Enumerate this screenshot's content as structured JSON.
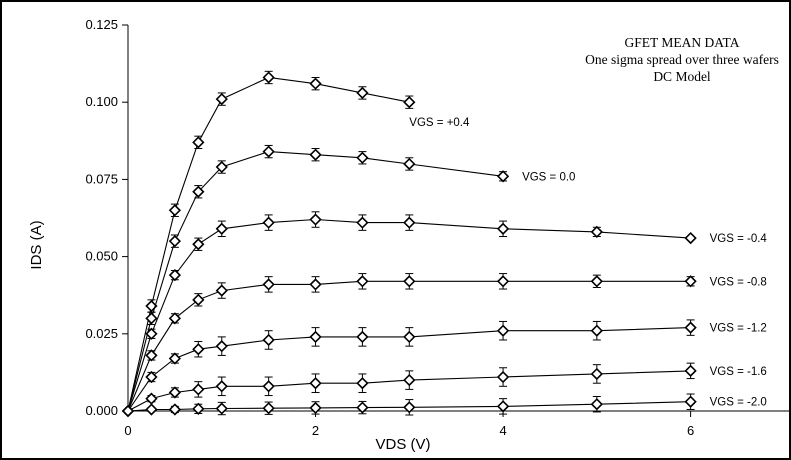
{
  "chart_data": {
    "type": "line",
    "title_lines": [
      "GFET MEAN DATA",
      "One sigma spread over three wafers",
      "DC Model"
    ],
    "xlabel": "VDS (V)",
    "ylabel": "IDS (A)",
    "xlim": [
      0,
      7.3
    ],
    "ylim": [
      0,
      0.125
    ],
    "x_ticks": [
      0,
      2,
      4,
      6
    ],
    "x_tick_labels": [
      "0",
      "2",
      "4",
      "6"
    ],
    "y_ticks": [
      0,
      0.025,
      0.05,
      0.075,
      0.1,
      0.125
    ],
    "y_tick_labels": [
      "0.000",
      "0.025",
      "0.050",
      "0.075",
      "0.100",
      "0.125"
    ],
    "marker": "diamond",
    "error_bars": true,
    "series": [
      {
        "name": "VGS = +0.4",
        "x": [
          0,
          0.25,
          0.5,
          0.75,
          1.0,
          1.5,
          2.0,
          2.5,
          3.0
        ],
        "y": [
          0,
          0.034,
          0.065,
          0.087,
          0.101,
          0.108,
          0.106,
          0.103,
          0.1
        ],
        "err": [
          0,
          0.002,
          0.002,
          0.002,
          0.002,
          0.002,
          0.002,
          0.002,
          0.002
        ]
      },
      {
        "name": "VGS =  0.0",
        "x": [
          0,
          0.25,
          0.5,
          0.75,
          1.0,
          1.5,
          2.0,
          2.5,
          3.0,
          4.0
        ],
        "y": [
          0,
          0.03,
          0.055,
          0.071,
          0.079,
          0.084,
          0.083,
          0.082,
          0.08,
          0.076
        ],
        "err": [
          0,
          0.002,
          0.002,
          0.002,
          0.002,
          0.002,
          0.002,
          0.002,
          0.002,
          0.0015
        ]
      },
      {
        "name": "VGS = -0.4",
        "x": [
          0,
          0.25,
          0.5,
          0.75,
          1.0,
          1.5,
          2.0,
          2.5,
          3.0,
          4.0,
          5.0,
          6.0
        ],
        "y": [
          0,
          0.025,
          0.044,
          0.054,
          0.059,
          0.061,
          0.062,
          0.061,
          0.061,
          0.059,
          0.058,
          0.056
        ],
        "err": [
          0,
          0.0015,
          0.0015,
          0.002,
          0.0025,
          0.0025,
          0.0025,
          0.0025,
          0.0025,
          0.0025,
          0.0015,
          0.0005
        ]
      },
      {
        "name": "VGS = -0.8",
        "x": [
          0,
          0.25,
          0.5,
          0.75,
          1.0,
          1.5,
          2.0,
          2.5,
          3.0,
          4.0,
          5.0,
          6.0
        ],
        "y": [
          0,
          0.018,
          0.03,
          0.036,
          0.039,
          0.041,
          0.041,
          0.042,
          0.042,
          0.042,
          0.042,
          0.042
        ],
        "err": [
          0,
          0.0015,
          0.0015,
          0.002,
          0.0025,
          0.0025,
          0.0025,
          0.0025,
          0.0025,
          0.0025,
          0.002,
          0.0015
        ]
      },
      {
        "name": "VGS = -1.2",
        "x": [
          0,
          0.25,
          0.5,
          0.75,
          1.0,
          1.5,
          2.0,
          2.5,
          3.0,
          4.0,
          5.0,
          6.0
        ],
        "y": [
          0,
          0.011,
          0.017,
          0.02,
          0.021,
          0.023,
          0.024,
          0.024,
          0.024,
          0.026,
          0.026,
          0.027
        ],
        "err": [
          0,
          0.0015,
          0.0015,
          0.0025,
          0.003,
          0.003,
          0.003,
          0.003,
          0.003,
          0.003,
          0.003,
          0.0025
        ]
      },
      {
        "name": "VGS = -1.6",
        "x": [
          0,
          0.25,
          0.5,
          0.75,
          1.0,
          1.5,
          2.0,
          2.5,
          3.0,
          4.0,
          5.0,
          6.0
        ],
        "y": [
          0,
          0.004,
          0.006,
          0.007,
          0.008,
          0.008,
          0.009,
          0.009,
          0.01,
          0.011,
          0.012,
          0.013
        ],
        "err": [
          0,
          0.001,
          0.0015,
          0.0025,
          0.003,
          0.003,
          0.003,
          0.003,
          0.003,
          0.003,
          0.003,
          0.0025
        ]
      },
      {
        "name": "VGS = -2.0",
        "x": [
          0,
          0.25,
          0.5,
          0.75,
          1.0,
          1.5,
          2.0,
          2.5,
          3.0,
          4.0,
          5.0,
          6.0
        ],
        "y": [
          0,
          0.0005,
          0.0005,
          0.0007,
          0.0008,
          0.0009,
          0.001,
          0.0011,
          0.0012,
          0.0015,
          0.0022,
          0.003
        ],
        "err": [
          0,
          0.0005,
          0.001,
          0.0015,
          0.002,
          0.002,
          0.002,
          0.002,
          0.0025,
          0.0025,
          0.0025,
          0.0025
        ]
      }
    ]
  }
}
